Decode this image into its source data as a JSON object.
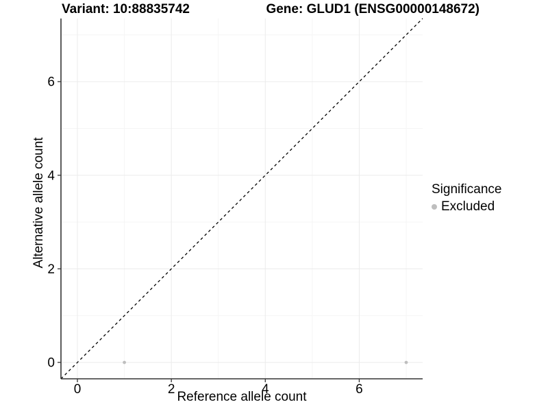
{
  "chart_data": {
    "type": "scatter",
    "title_left": "Variant: 10:88835742",
    "title_right": "Gene: GLUD1 (ENSG00000148672)",
    "xlabel": "Reference allele count",
    "ylabel": "Alternative allele count",
    "xlim": [
      -0.35,
      7.35
    ],
    "ylim": [
      -0.35,
      7.35
    ],
    "x_ticks": [
      0,
      2,
      4,
      6
    ],
    "y_ticks": [
      0,
      2,
      4,
      6
    ],
    "x_minor_ticks": [
      1,
      3,
      5,
      7
    ],
    "y_minor_ticks": [
      1,
      3,
      5,
      7
    ],
    "grid": "major and minor gridlines on white background",
    "identity_line": {
      "slope": 1,
      "intercept": 0,
      "style": "dashed",
      "color": "#000000"
    },
    "series": [
      {
        "name": "Excluded",
        "color": "#bebebe",
        "points": [
          [
            1,
            0
          ],
          [
            7,
            0
          ]
        ]
      }
    ],
    "legend_position": "right"
  },
  "legend": {
    "title": "Significance",
    "items": [
      {
        "label": "Excluded",
        "color": "#bebebe"
      }
    ]
  },
  "colors": {
    "background": "#ffffff",
    "axis_line": "#333333",
    "grid_major": "#ebebeb",
    "grid_minor": "#f5f5f5",
    "tick_text": "#000000",
    "title_text": "#000000"
  }
}
